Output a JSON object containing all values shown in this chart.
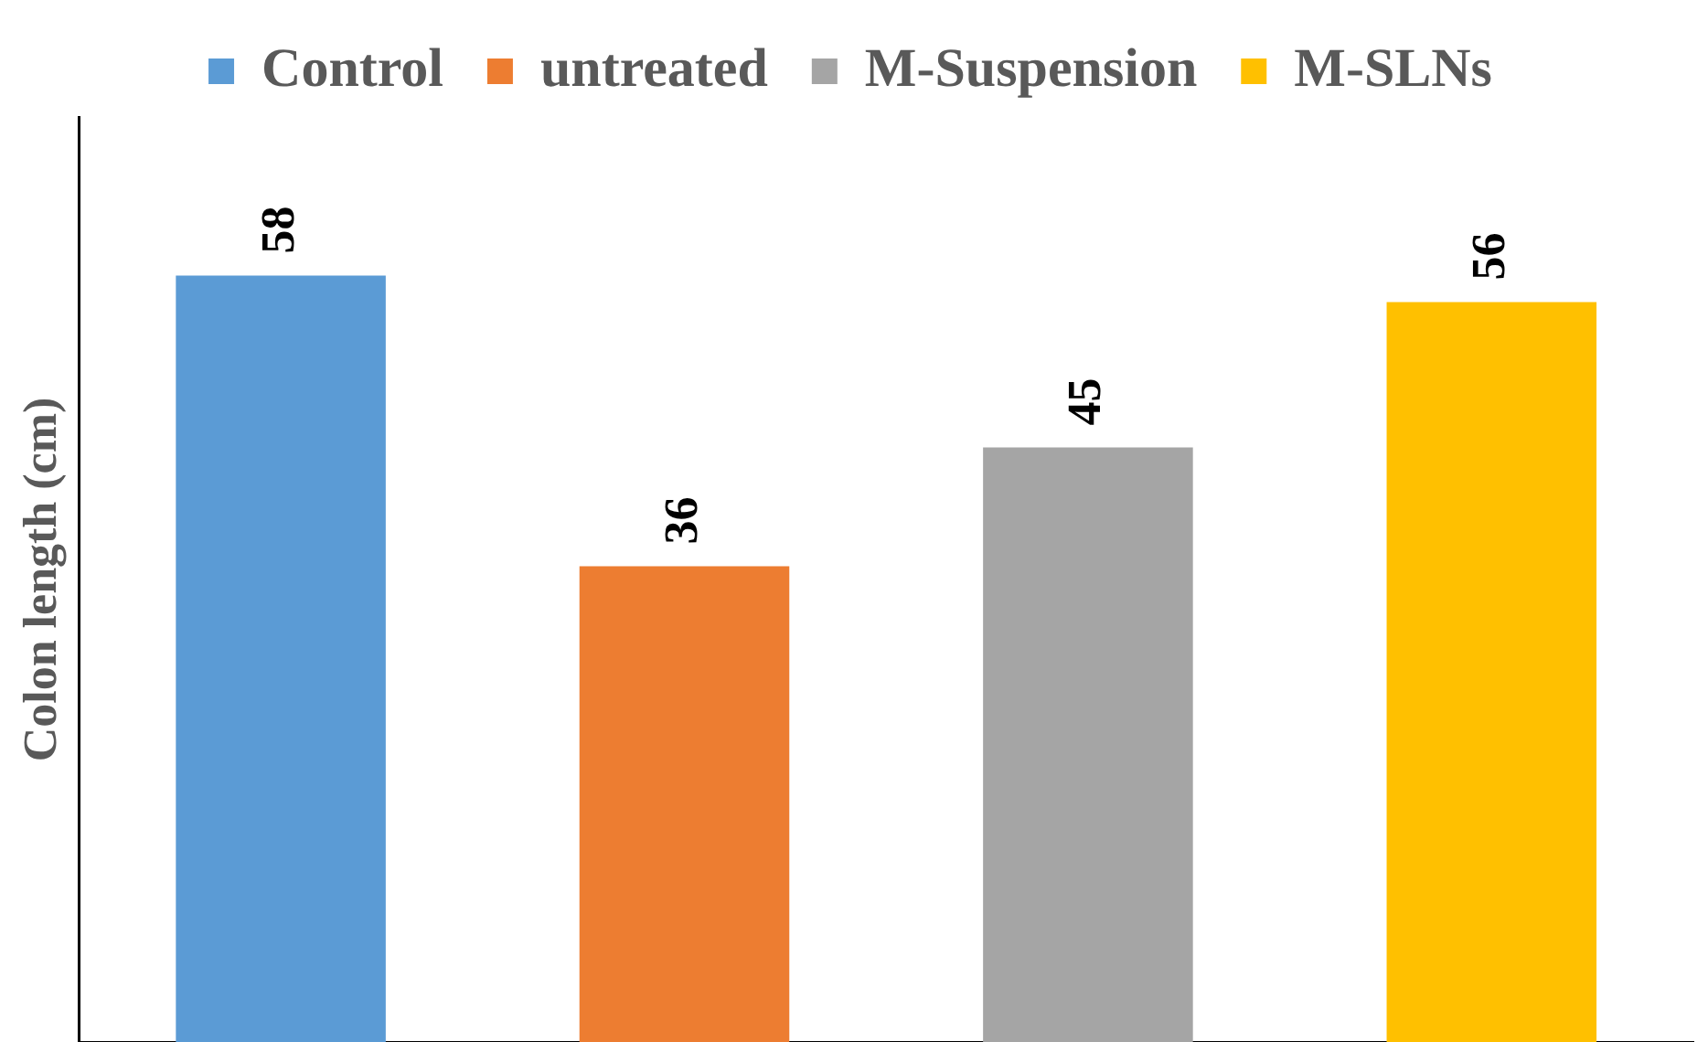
{
  "chart_data": {
    "type": "bar",
    "ylabel": "Colon length (cm)",
    "categories": [
      null,
      null,
      null,
      null
    ],
    "series": [
      {
        "name": "Control",
        "color": "#5b9bd5",
        "values": [
          58,
          null,
          null,
          null
        ]
      },
      {
        "name": "untreated",
        "color": "#ed7d31",
        "values": [
          null,
          36,
          null,
          null
        ]
      },
      {
        "name": "M-Suspension",
        "color": "#a5a5a5",
        "values": [
          null,
          null,
          45,
          null
        ]
      },
      {
        "name": "M-SLNs",
        "color": "#ffc000",
        "values": [
          null,
          null,
          null,
          56
        ]
      }
    ],
    "stacked": true,
    "ylim": [
      0,
      70
    ],
    "tick_labels": false,
    "grid": false,
    "legend": "top",
    "data_labels": true
  }
}
